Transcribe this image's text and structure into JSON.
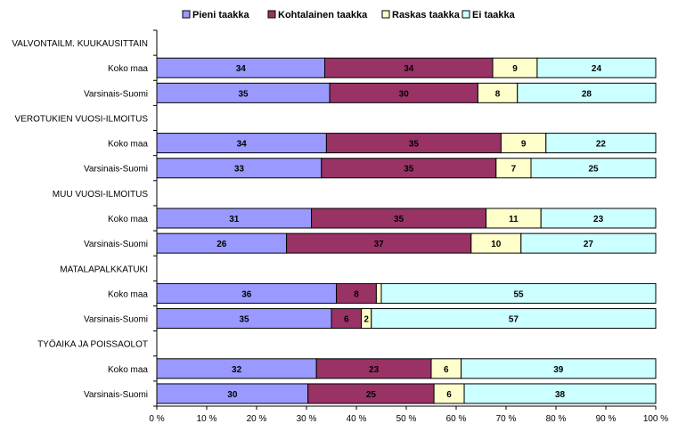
{
  "chart_data": {
    "type": "bar",
    "orientation": "horizontal",
    "stacked": "percent",
    "legend_position": "top",
    "grid": false,
    "xlim": [
      0,
      100
    ],
    "x_ticks": [
      "0 %",
      "10 %",
      "20 %",
      "30 %",
      "40 %",
      "50 %",
      "60 %",
      "70 %",
      "80 %",
      "90 %",
      "100 %"
    ],
    "series": [
      {
        "name": "Pieni taakka",
        "color": "#9999ff"
      },
      {
        "name": "Kohtalainen taakka",
        "color": "#993366"
      },
      {
        "name": "Raskas taakka",
        "color": "#ffffcc"
      },
      {
        "name": "Ei taakka",
        "color": "#ccffff"
      }
    ],
    "groups": [
      {
        "label": "VALVONTAILM. KUUKAUSITTAIN",
        "rows": [
          {
            "label": "Koko maa",
            "values": [
              34,
              34,
              9,
              24
            ],
            "labels": [
              "34",
              "34",
              "9",
              "24"
            ]
          },
          {
            "label": "Varsinais-Suomi",
            "values": [
              35,
              30,
              8,
              28
            ],
            "labels": [
              "35",
              "30",
              "8",
              "28"
            ]
          }
        ]
      },
      {
        "label": "VEROTUKIEN VUOSI-ILMOITUS",
        "rows": [
          {
            "label": "Koko maa",
            "values": [
              34,
              35,
              9,
              22
            ],
            "labels": [
              "34",
              "35",
              "9",
              "22"
            ]
          },
          {
            "label": "Varsinais-Suomi",
            "values": [
              33,
              35,
              7,
              25
            ],
            "labels": [
              "33",
              "35",
              "7",
              "25"
            ]
          }
        ]
      },
      {
        "label": "MUU VUOSI-ILMOITUS",
        "rows": [
          {
            "label": "Koko maa",
            "values": [
              31,
              35,
              11,
              23
            ],
            "labels": [
              "31",
              "35",
              "11",
              "23"
            ]
          },
          {
            "label": "Varsinais-Suomi",
            "values": [
              26,
              37,
              10,
              27
            ],
            "labels": [
              "26",
              "37",
              "10",
              "27"
            ]
          }
        ]
      },
      {
        "label": "MATALAPALKKATUKI",
        "rows": [
          {
            "label": "Koko maa",
            "values": [
              36,
              8,
              1,
              55
            ],
            "labels": [
              "36",
              "8",
              "",
              "55"
            ]
          },
          {
            "label": "Varsinais-Suomi",
            "values": [
              35,
              6,
              2,
              57
            ],
            "labels": [
              "35",
              "6",
              "2",
              "57"
            ]
          }
        ]
      },
      {
        "label": "TYÖAIKA JA POISSAOLOT",
        "rows": [
          {
            "label": "Koko maa",
            "values": [
              32,
              23,
              6,
              39
            ],
            "labels": [
              "32",
              "23",
              "6",
              "39"
            ]
          },
          {
            "label": "Varsinais-Suomi",
            "values": [
              30,
              25,
              6,
              38
            ],
            "labels": [
              "30",
              "25",
              "6",
              "38"
            ]
          }
        ]
      }
    ]
  }
}
